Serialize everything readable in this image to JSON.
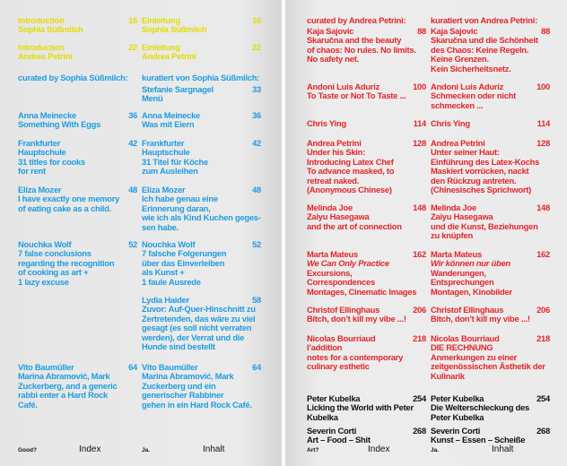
{
  "pages": [
    {
      "rows": [
        {
          "color": "#e3dc00",
          "cells": [
            {
              "lines": [
                "Introduction",
                "Sophia Süßmilch"
              ],
              "page": "16"
            },
            {
              "lines": [
                "Einleitung",
                "Sophia Süßmilch"
              ],
              "page": "16"
            }
          ]
        },
        {
          "color": "#e3dc00",
          "cells": [
            {
              "lines": [
                "Introduction",
                "Andrea Petrini"
              ],
              "page": "22"
            },
            {
              "lines": [
                "Einleitung",
                "Andrea Petrini"
              ],
              "page": "22"
            }
          ]
        },
        {
          "color": "#1e9de0",
          "cells": [
            {
              "lines": [
                "curated by Sophia Süßmilch:"
              ]
            },
            {
              "lines": [
                "kuratiert von Sophia Süßmilch:"
              ]
            }
          ]
        },
        {
          "color": "#1e9de0",
          "cells": [
            null,
            {
              "lines": [
                "Stefanie Sargnagel",
                "Menü"
              ],
              "page": "33"
            }
          ]
        },
        {
          "color": "#1e9de0",
          "cells": [
            {
              "lines": [
                "Anna Meinecke",
                "Something With Eggs"
              ],
              "page": "36"
            },
            {
              "lines": [
                "Anna Meinecke",
                "Was mit Eiern"
              ],
              "page": "36"
            }
          ]
        },
        {
          "color": "#1e9de0",
          "cells": [
            {
              "lines": [
                "Frankfurter",
                "Hauptschule",
                "31 titles for cooks",
                "for rent"
              ],
              "page": "42"
            },
            {
              "lines": [
                "Frankfurter",
                "Hauptschule",
                "31 Titel für Köche",
                "zum Ausleihen"
              ],
              "page": "42"
            }
          ]
        },
        {
          "color": "#1e9de0",
          "cells": [
            {
              "lines": [
                "Eliza Mozer",
                "I have exactly one memory",
                "of eating cake as a child."
              ],
              "page": "48"
            },
            {
              "lines": [
                "Eliza Mozer",
                "Ich habe genau eine",
                "Erinnerung daran,",
                "wie ich als Kind Kuchen geges-",
                "sen habe."
              ],
              "page": "48"
            }
          ]
        },
        {
          "color": "#1e9de0",
          "cells": [
            {
              "lines": [
                "Nouchka Wolf",
                "7 false conclusions",
                "regarding the recognition",
                "of cooking as art +",
                "1 lazy excuse"
              ],
              "page": "52"
            },
            {
              "lines": [
                "Nouchka Wolf",
                "7 falsche Folgerungen",
                "über das Einverleiben",
                "als Kunst +",
                "1 faule Ausrede"
              ],
              "page": "52"
            }
          ]
        },
        {
          "color": "#1e9de0",
          "cells": [
            null,
            {
              "lines": [
                "Lydia Haider",
                "Zuvor: Auf-Quer-Hinschnitt zu",
                "Zertretenden, das wäre zu viel",
                "gesagt (es soll nicht verraten",
                "werden), der Verrat und die",
                "Hunde sind bestellt"
              ],
              "page": "58"
            }
          ]
        },
        {
          "color": "#1e9de0",
          "cells": [
            {
              "lines": [
                "Vito Baumüller",
                "Marina Abramović, Mark",
                "Zuckerberg, and a generic",
                "rabbi enter a Hard Rock",
                "Café."
              ],
              "page": "64"
            },
            {
              "lines": [
                "Vito Baumüller",
                "Marina Abramović, Mark",
                "Zuckerberg und ein",
                "generischer Rabbiner",
                "gehen in ein Hard Rock Café."
              ],
              "page": "64"
            }
          ]
        }
      ],
      "footer": [
        {
          "small": "Good?",
          "label": "Index"
        },
        {
          "small": "Ja.",
          "label": "Inhalt"
        }
      ]
    },
    {
      "rows": [
        {
          "color": "#e3262b",
          "cells": [
            {
              "lines": [
                "curated by Andrea Petrini:"
              ]
            },
            {
              "lines": [
                "kuratiert von Andrea Petrini:"
              ]
            }
          ]
        },
        {
          "color": "#e3262b",
          "cells": [
            {
              "lines": [
                "Kaja Sajovic",
                "Skaručna and the beauty",
                "of chaos: No rules. No limits.",
                "No safety net."
              ],
              "page": "88"
            },
            {
              "lines": [
                "Kaja Sajovic",
                "Skaručna und die Schönheit",
                "des Chaos: Keine Regeln.",
                "Keine Grenzen.",
                "Kein Sicherheitsnetz."
              ],
              "page": "88"
            }
          ]
        },
        {
          "color": "#e3262b",
          "cells": [
            {
              "lines": [
                "Andoni Luis Aduriz",
                "To Taste or Not To Taste ..."
              ],
              "page": "100"
            },
            {
              "lines": [
                "Andoni Luis Aduriz",
                "Schmecken oder nicht",
                "schmecken ..."
              ],
              "page": "100"
            }
          ]
        },
        {
          "color": "#e3262b",
          "cells": [
            {
              "lines": [
                "Chris Ying"
              ],
              "page": "114"
            },
            {
              "lines": [
                "Chris Ying"
              ],
              "page": "114"
            }
          ]
        },
        {
          "color": "#e3262b",
          "cells": [
            {
              "lines": [
                "Andrea Petrini",
                "Under his Skin:",
                "Introducing Latex Chef",
                "To advance masked, to",
                "retreat naked.",
                "(Anonymous Chinese)"
              ],
              "page": "128"
            },
            {
              "lines": [
                "Andrea Petrini",
                "Unter seiner Haut:",
                "Einführung des Latex-Kochs",
                "Maskiert vorrücken, nackt",
                "den Rückzug antreten.",
                "(Chinesisches Sprichwort)"
              ],
              "page": "128"
            }
          ]
        },
        {
          "color": "#e3262b",
          "cells": [
            {
              "lines": [
                "Melinda Joe",
                "Zaiyu Hasegawa",
                "and the art of connection"
              ],
              "page": "148"
            },
            {
              "lines": [
                "Melinda Joe",
                "Zaiyu Hasegawa",
                "und die Kunst, Beziehungen",
                "zu knüpfen"
              ],
              "page": "148"
            }
          ]
        },
        {
          "color": "#e3262b",
          "cells": [
            {
              "lines": [
                "Marta Mateus",
                "We Can Only Practice",
                "Excursions,",
                "Correspondences",
                "Montages, Cinematic Images"
              ],
              "page": "162",
              "italic_lines": [
                1
              ]
            },
            {
              "lines": [
                "Marta Mateus",
                "Wir können nur üben",
                "Wanderungen,",
                "Entsprechungen",
                "Montagen, Kinobilder"
              ],
              "page": "162",
              "italic_lines": [
                1
              ]
            }
          ]
        },
        {
          "color": "#e3262b",
          "cells": [
            {
              "lines": [
                "Christof Ellinghaus",
                "Bitch, don’t kill my vibe ...!"
              ],
              "page": "206"
            },
            {
              "lines": [
                "Christof Ellinghaus",
                "Bitch, don’t kill my vibe ...!"
              ],
              "page": "206"
            }
          ]
        },
        {
          "color": "#e3262b",
          "cells": [
            {
              "lines": [
                "Nicolas Bourriaud",
                "l’addition",
                "notes for a contemporary",
                "culinary esthetic"
              ],
              "page": "218"
            },
            {
              "lines": [
                "Nicolas Bourriaud",
                "DIE RECHNUNG",
                "Anmerkungen zu einer",
                "zeitgenössischen Ästhetik der",
                "Kulinarik"
              ],
              "page": "218"
            }
          ]
        },
        {
          "color": "#111111",
          "cells": [
            {
              "lines": [
                "Peter Kubelka",
                "Licking the World with Peter",
                "Kubelka"
              ],
              "page": "254"
            },
            {
              "lines": [
                "Peter Kubelka",
                "Die Welterschleckung des",
                "Peter Kubelka"
              ],
              "page": "254"
            }
          ]
        },
        {
          "color": "#111111",
          "cells": [
            {
              "lines": [
                "Severin Corti",
                "Art – Food – Shit"
              ],
              "page": "268"
            },
            {
              "lines": [
                "Severin Corti",
                "Kunst – Essen – Scheiße"
              ],
              "page": "268"
            }
          ]
        }
      ],
      "footer": [
        {
          "small": "Art?",
          "label": "Index"
        },
        {
          "small": "Ja.",
          "label": "Inhalt"
        }
      ]
    }
  ]
}
